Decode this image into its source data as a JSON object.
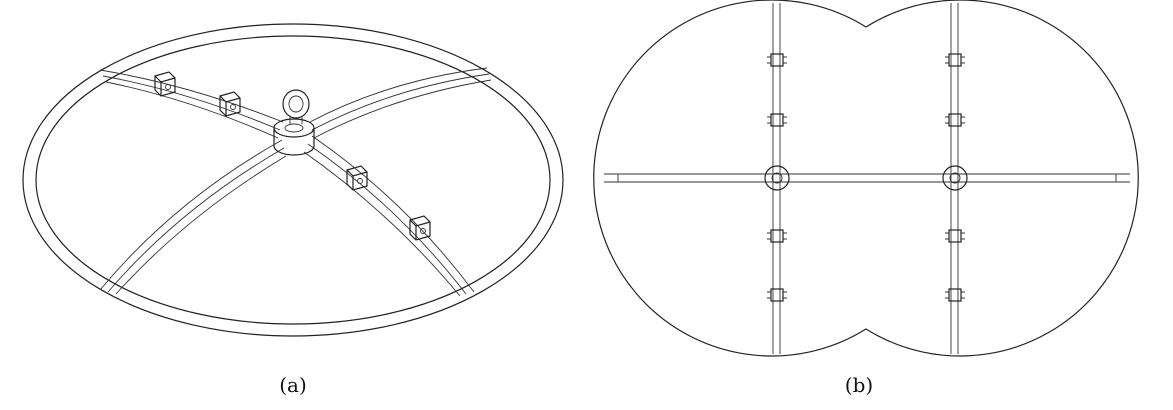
{
  "figure": {
    "panels": [
      {
        "id": "a",
        "caption": "(a)"
      },
      {
        "id": "b",
        "caption": "(b)"
      }
    ],
    "colors": {
      "line": "#222222",
      "background": "#ffffff"
    }
  }
}
